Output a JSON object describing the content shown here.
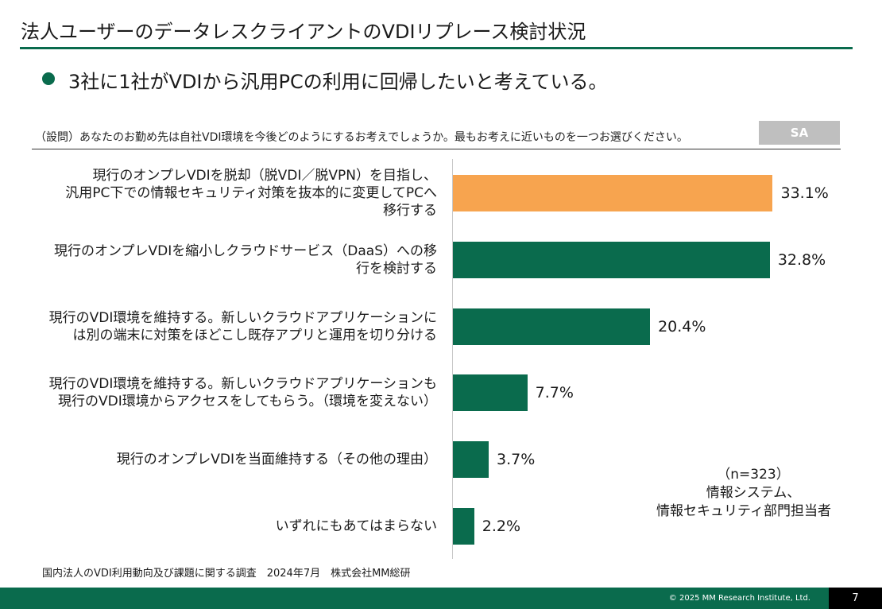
{
  "page": {
    "title": "法人ユーザーのデータレスクライアントのVDIリプレース検討状況",
    "headline": "3社に1社がVDIから汎用PCの利用に回帰したいと考えている。",
    "question": "（設問）あなたのお勤め先は自社VDI環境を今後どのようにするお考えでしょうか。最もお考えに近いものを一つお選びください。",
    "sa_badge": "SA",
    "note_n": "（n=323）",
    "note_line1": "情報システム、",
    "note_line2": "情報セキュリティ部門担当者",
    "source": "国内法人のVDI利用動向及び課題に関する調査　2024年7月　株式会社MM総研",
    "copyright": "© 2025 MM Research Institute, Ltd.",
    "page_number": "7"
  },
  "colors": {
    "accent": "#0a6b4d",
    "highlight": "#f7a44f"
  },
  "chart_data": {
    "type": "bar",
    "orientation": "horizontal",
    "categories": [
      "現行のオンプレVDIを脱却（脱VDI／脱VPN）を目指し、\n汎用PC下での情報セキュリティ対策を抜本的に変更してPCへ\n移行する",
      "現行のオンプレVDIを縮小しクラウドサービス（DaaS）への移\n行を検討する",
      "現行のVDI環境を維持する。新しいクラウドアプリケーションに\nは別の端末に対策をほどこし既存アプリと運用を切り分ける",
      "現行のVDI環境を維持する。新しいクラウドアプリケーションも\n現行のVDI環境からアクセスをしてもらう。（環境を変えない）",
      "現行のオンプレVDIを当面維持する（その他の理由）",
      "いずれにもあてはまらない"
    ],
    "values": [
      33.1,
      32.8,
      20.4,
      7.7,
      3.7,
      2.2
    ],
    "value_labels": [
      "33.1%",
      "32.8%",
      "20.4%",
      "7.7%",
      "3.7%",
      "2.2%"
    ],
    "unit": "%",
    "highlight_index": 0,
    "xlim": [
      0,
      37
    ]
  }
}
